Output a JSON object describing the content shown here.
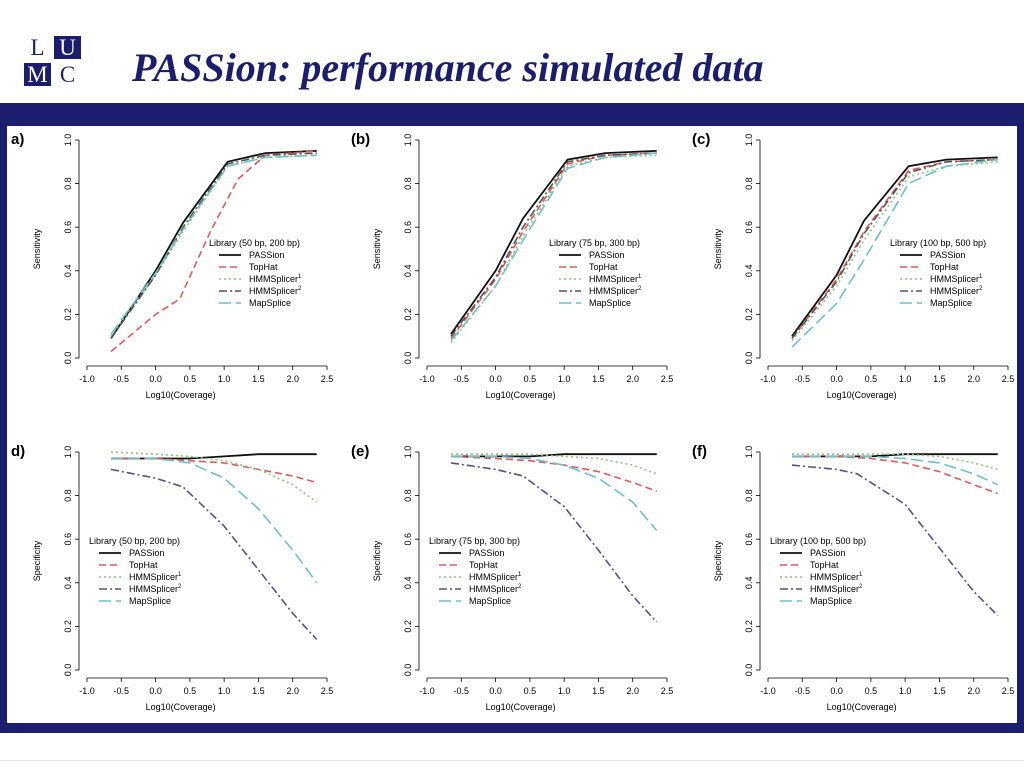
{
  "slide": {
    "logo": {
      "t1": "L",
      "t2": "U",
      "t3": "M",
      "t4": "C"
    },
    "title": "PASSion: performance simulated data"
  },
  "colors": {
    "frame": "#1b1e6e",
    "PASSion": "#111111",
    "TopHat": "#e05a5a",
    "HMMSplicer": "#8cc47a",
    "HMMSplicer2_sens": "#555555",
    "HMMSplicer2_spec": "#5a4e8c",
    "MapSplice": "#6cc0cc"
  },
  "chart_data": [
    {
      "panel": "a",
      "label": "a)",
      "type": "line",
      "ylabel": "Sensitivity",
      "xlabel": "Log10(Coverage)",
      "xlim": [
        -1.0,
        2.5
      ],
      "ylim": [
        0.0,
        1.0
      ],
      "xticks": [
        "-1.0",
        "-0.5",
        "0.0",
        "0.5",
        "1.0",
        "1.5",
        "2.0",
        "2.5"
      ],
      "yticks": [
        "0.0",
        "0.2",
        "0.4",
        "0.6",
        "0.8",
        "1.0"
      ],
      "legend_title": "Library (50 bp, 200 bp)",
      "series": [
        {
          "name": "PASSion",
          "x": [
            -0.65,
            0.0,
            0.4,
            1.05,
            1.6,
            2.35
          ],
          "y": [
            0.09,
            0.4,
            0.62,
            0.9,
            0.94,
            0.95
          ]
        },
        {
          "name": "TopHat",
          "x": [
            -0.65,
            0.0,
            0.35,
            0.8,
            1.2,
            1.6,
            2.35
          ],
          "y": [
            0.03,
            0.2,
            0.27,
            0.58,
            0.82,
            0.93,
            0.95
          ]
        },
        {
          "name": "HMMSplicer",
          "x": [
            -0.65,
            0.0,
            0.4,
            1.05,
            1.6,
            2.35
          ],
          "y": [
            0.1,
            0.38,
            0.58,
            0.88,
            0.92,
            0.93
          ]
        },
        {
          "name": "HMMSplicer2",
          "x": [
            -0.65,
            0.0,
            0.4,
            1.05,
            1.6,
            2.35
          ],
          "y": [
            0.09,
            0.38,
            0.6,
            0.89,
            0.93,
            0.94
          ]
        },
        {
          "name": "MapSplice",
          "x": [
            -0.65,
            0.0,
            0.4,
            1.05,
            1.6,
            2.35
          ],
          "y": [
            0.11,
            0.39,
            0.59,
            0.88,
            0.92,
            0.93
          ]
        }
      ]
    },
    {
      "panel": "b",
      "label": "(b)",
      "type": "line",
      "ylabel": "Sensitivity",
      "xlabel": "Log10(Coverage)",
      "xlim": [
        -1.0,
        2.5
      ],
      "ylim": [
        0.0,
        1.0
      ],
      "xticks": [
        "-1.0",
        "-0.5",
        "0.0",
        "0.5",
        "1.0",
        "1.5",
        "2.0",
        "2.5"
      ],
      "yticks": [
        "0.0",
        "0.2",
        "0.4",
        "0.6",
        "0.8",
        "1.0"
      ],
      "legend_title": "Library (75 bp, 300 bp)",
      "series": [
        {
          "name": "PASSion",
          "x": [
            -0.65,
            0.0,
            0.4,
            1.05,
            1.6,
            2.35
          ],
          "y": [
            0.11,
            0.4,
            0.64,
            0.91,
            0.94,
            0.95
          ]
        },
        {
          "name": "TopHat",
          "x": [
            -0.65,
            0.0,
            0.4,
            1.05,
            1.6,
            2.35
          ],
          "y": [
            0.09,
            0.36,
            0.58,
            0.89,
            0.93,
            0.94
          ]
        },
        {
          "name": "HMMSplicer",
          "x": [
            -0.65,
            0.0,
            0.4,
            1.05,
            1.6,
            2.35
          ],
          "y": [
            0.07,
            0.33,
            0.56,
            0.88,
            0.92,
            0.93
          ]
        },
        {
          "name": "HMMSplicer2",
          "x": [
            -0.65,
            0.0,
            0.4,
            1.05,
            1.6,
            2.35
          ],
          "y": [
            0.1,
            0.37,
            0.6,
            0.9,
            0.93,
            0.94
          ]
        },
        {
          "name": "MapSplice",
          "x": [
            -0.65,
            0.0,
            0.4,
            1.05,
            1.6,
            2.35
          ],
          "y": [
            0.08,
            0.33,
            0.54,
            0.87,
            0.92,
            0.94
          ]
        }
      ]
    },
    {
      "panel": "c",
      "label": "(c)",
      "type": "line",
      "ylabel": "Sensitivity",
      "xlabel": "Log10(Coverage)",
      "xlim": [
        -1.0,
        2.5
      ],
      "ylim": [
        0.0,
        1.0
      ],
      "xticks": [
        "-1.0",
        "-0.5",
        "0.0",
        "0.5",
        "1.0",
        "1.5",
        "2.0",
        "2.5"
      ],
      "yticks": [
        "0.0",
        "0.2",
        "0.4",
        "0.6",
        "0.8",
        "1.0"
      ],
      "legend_title": "Library (100 bp, 500 bp)",
      "series": [
        {
          "name": "PASSion",
          "x": [
            -0.65,
            0.0,
            0.4,
            1.05,
            1.6,
            2.35
          ],
          "y": [
            0.1,
            0.38,
            0.63,
            0.88,
            0.91,
            0.92
          ]
        },
        {
          "name": "TopHat",
          "x": [
            -0.65,
            0.0,
            0.4,
            1.05,
            1.6,
            2.35
          ],
          "y": [
            0.09,
            0.36,
            0.58,
            0.86,
            0.9,
            0.91
          ]
        },
        {
          "name": "HMMSplicer",
          "x": [
            -0.65,
            0.0,
            0.4,
            1.05,
            1.6,
            2.35
          ],
          "y": [
            0.08,
            0.33,
            0.54,
            0.83,
            0.88,
            0.9
          ]
        },
        {
          "name": "HMMSplicer2",
          "x": [
            -0.65,
            0.0,
            0.4,
            1.05,
            1.6,
            2.35
          ],
          "y": [
            0.09,
            0.35,
            0.57,
            0.85,
            0.9,
            0.91
          ]
        },
        {
          "name": "MapSplice",
          "x": [
            -0.65,
            0.0,
            0.4,
            1.05,
            1.6,
            2.35
          ],
          "y": [
            0.05,
            0.25,
            0.45,
            0.8,
            0.88,
            0.91
          ]
        }
      ]
    },
    {
      "panel": "d",
      "label": "d)",
      "type": "line",
      "ylabel": "Specificity",
      "xlabel": "Log10(Coverage)",
      "xlim": [
        -1.0,
        2.5
      ],
      "ylim": [
        0.0,
        1.0
      ],
      "xticks": [
        "-1.0",
        "-0.5",
        "0.0",
        "0.5",
        "1.0",
        "1.5",
        "2.0",
        "2.5"
      ],
      "yticks": [
        "0.0",
        "0.2",
        "0.4",
        "0.6",
        "0.8",
        "1.0"
      ],
      "legend_title": "Library (50 bp, 200 bp)",
      "series": [
        {
          "name": "PASSion",
          "x": [
            -0.65,
            0.0,
            0.5,
            1.0,
            1.5,
            2.0,
            2.35
          ],
          "y": [
            0.97,
            0.97,
            0.97,
            0.98,
            0.99,
            0.99,
            0.99
          ]
        },
        {
          "name": "TopHat",
          "x": [
            -0.65,
            0.0,
            0.5,
            1.0,
            1.5,
            2.0,
            2.35
          ],
          "y": [
            0.97,
            0.97,
            0.96,
            0.95,
            0.92,
            0.89,
            0.86
          ]
        },
        {
          "name": "HMMSplicer",
          "x": [
            -0.65,
            0.0,
            0.5,
            1.0,
            1.5,
            2.0,
            2.35
          ],
          "y": [
            1.0,
            0.99,
            0.98,
            0.96,
            0.92,
            0.85,
            0.77
          ]
        },
        {
          "name": "HMMSplicer2",
          "x": [
            -0.65,
            0.0,
            0.4,
            1.0,
            1.5,
            2.0,
            2.35
          ],
          "y": [
            0.92,
            0.88,
            0.84,
            0.66,
            0.46,
            0.26,
            0.14
          ]
        },
        {
          "name": "MapSplice",
          "x": [
            -0.65,
            0.0,
            0.5,
            1.0,
            1.5,
            2.0,
            2.35
          ],
          "y": [
            0.97,
            0.97,
            0.95,
            0.88,
            0.74,
            0.55,
            0.4
          ]
        }
      ]
    },
    {
      "panel": "e",
      "label": "(e)",
      "type": "line",
      "ylabel": "Specificity",
      "xlabel": "Log10(Coverage)",
      "xlim": [
        -1.0,
        2.5
      ],
      "ylim": [
        0.0,
        1.0
      ],
      "xticks": [
        "-1.0",
        "-0.5",
        "0.0",
        "0.5",
        "1.0",
        "1.5",
        "2.0",
        "2.5"
      ],
      "yticks": [
        "0.0",
        "0.2",
        "0.4",
        "0.6",
        "0.8",
        "1.0"
      ],
      "legend_title": "Library (75 bp, 300 bp)",
      "series": [
        {
          "name": "PASSion",
          "x": [
            -0.65,
            0.0,
            0.5,
            1.0,
            1.5,
            2.0,
            2.35
          ],
          "y": [
            0.98,
            0.98,
            0.98,
            0.99,
            0.99,
            0.99,
            0.99
          ]
        },
        {
          "name": "TopHat",
          "x": [
            -0.65,
            0.0,
            0.5,
            1.0,
            1.5,
            2.0,
            2.35
          ],
          "y": [
            0.98,
            0.97,
            0.96,
            0.94,
            0.91,
            0.86,
            0.82
          ]
        },
        {
          "name": "HMMSplicer",
          "x": [
            -0.65,
            0.0,
            0.5,
            1.0,
            1.5,
            2.0,
            2.35
          ],
          "y": [
            0.99,
            0.99,
            0.99,
            0.98,
            0.97,
            0.94,
            0.9
          ]
        },
        {
          "name": "HMMSplicer2",
          "x": [
            -0.65,
            0.0,
            0.4,
            1.0,
            1.5,
            2.0,
            2.35
          ],
          "y": [
            0.95,
            0.92,
            0.89,
            0.75,
            0.55,
            0.34,
            0.22
          ]
        },
        {
          "name": "MapSplice",
          "x": [
            -0.65,
            0.0,
            0.5,
            1.0,
            1.5,
            2.0,
            2.35
          ],
          "y": [
            0.98,
            0.98,
            0.97,
            0.94,
            0.88,
            0.77,
            0.64
          ]
        }
      ]
    },
    {
      "panel": "f",
      "label": "(f)",
      "type": "line",
      "ylabel": "Specificity",
      "xlabel": "Log10(Coverage)",
      "xlim": [
        -1.0,
        2.5
      ],
      "ylim": [
        0.0,
        1.0
      ],
      "xticks": [
        "-1.0",
        "-0.5",
        "0.0",
        "0.5",
        "1.0",
        "1.5",
        "2.0",
        "2.5"
      ],
      "yticks": [
        "0.0",
        "0.2",
        "0.4",
        "0.6",
        "0.8",
        "1.0"
      ],
      "legend_title": "Library (100 bp, 500 bp)",
      "series": [
        {
          "name": "PASSion",
          "x": [
            -0.65,
            0.0,
            0.5,
            1.0,
            1.5,
            2.0,
            2.35
          ],
          "y": [
            0.98,
            0.98,
            0.98,
            0.99,
            0.99,
            0.99,
            0.99
          ]
        },
        {
          "name": "TopHat",
          "x": [
            -0.65,
            0.0,
            0.5,
            1.0,
            1.5,
            2.0,
            2.35
          ],
          "y": [
            0.98,
            0.98,
            0.97,
            0.95,
            0.91,
            0.85,
            0.81
          ]
        },
        {
          "name": "HMMSplicer",
          "x": [
            -0.65,
            0.0,
            0.5,
            1.0,
            1.5,
            2.0,
            2.35
          ],
          "y": [
            0.99,
            0.99,
            0.99,
            0.99,
            0.98,
            0.95,
            0.92
          ]
        },
        {
          "name": "HMMSplicer2",
          "x": [
            -0.65,
            0.0,
            0.3,
            1.0,
            1.5,
            2.0,
            2.35
          ],
          "y": [
            0.94,
            0.92,
            0.9,
            0.76,
            0.56,
            0.36,
            0.25
          ]
        },
        {
          "name": "MapSplice",
          "x": [
            -0.65,
            0.0,
            0.5,
            1.0,
            1.5,
            2.0,
            2.35
          ],
          "y": [
            0.98,
            0.98,
            0.98,
            0.97,
            0.95,
            0.9,
            0.85
          ]
        }
      ]
    }
  ]
}
